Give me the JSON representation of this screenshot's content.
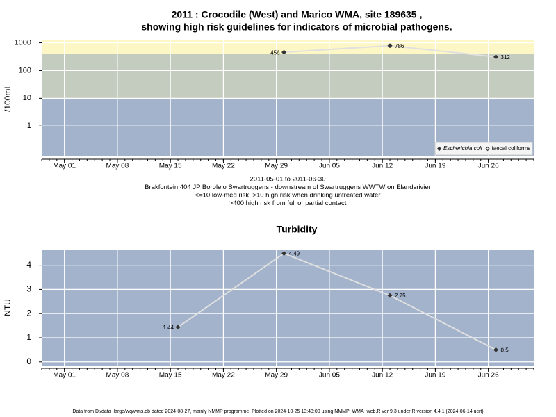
{
  "chart_data": [
    {
      "type": "line",
      "title": [
        "2011 : Crocodile (West) and Marico WMA, site 189635 ,",
        "showing high risk guidelines for indicators of microbial pathogens."
      ],
      "ylabel": "/100mL",
      "log_y": true,
      "x": [
        "2011-05-30",
        "2011-06-13",
        "2011-06-27"
      ],
      "series": [
        {
          "name": "Escherichia coli",
          "color": "#333333",
          "values": [
            456,
            786,
            312
          ]
        },
        {
          "name": "faecal coliforms",
          "color": "#333333",
          "values": [
            null,
            null,
            null
          ]
        }
      ],
      "line_color": "#e0e0e0",
      "bands": [
        {
          "max": 10,
          "color": "#a3b3cc"
        },
        {
          "min": 10,
          "max": 400,
          "color": "#c4cbbf"
        },
        {
          "min": 400,
          "color": "#fdf7c6"
        }
      ],
      "xlim": [
        "2011-04-28",
        "2011-07-02"
      ],
      "xticks": [
        {
          "value": "2011-05-01",
          "label": "May 01"
        },
        {
          "value": "2011-05-08",
          "label": "May 08"
        },
        {
          "value": "2011-05-15",
          "label": "May 15"
        },
        {
          "value": "2011-05-22",
          "label": "May 22"
        },
        {
          "value": "2011-05-29",
          "label": "May 29"
        },
        {
          "value": "2011-06-05",
          "label": "Jun 05"
        },
        {
          "value": "2011-06-12",
          "label": "Jun 12"
        },
        {
          "value": "2011-06-19",
          "label": "Jun 19"
        },
        {
          "value": "2011-06-26",
          "label": "Jun 26"
        }
      ],
      "ylim": [
        0.08,
        1300
      ],
      "yticks": [
        1,
        10,
        100,
        1000
      ],
      "grid": true,
      "legend": "bottom-right",
      "notes": [
        "2011-05-01 to 2011-06-30",
        "Brakfontein 404 JP Borolelo Swartruggens - downstream of Swartruggens WWTW on Elandsrivier",
        "<=10 low-med risk; >10 high risk when drinking untreated water",
        ">400 high risk from full or partial contact"
      ]
    },
    {
      "type": "line",
      "title": [
        "Turbidity"
      ],
      "ylabel": "NTU",
      "log_y": false,
      "x": [
        "2011-05-16",
        "2011-05-30",
        "2011-06-13",
        "2011-06-27"
      ],
      "series": [
        {
          "color": "#333333",
          "values": [
            1.44,
            4.49,
            2.75,
            0.5
          ]
        }
      ],
      "line_color": "#e0e0e0",
      "background": "#a3b3cc",
      "xlim": [
        "2011-04-28",
        "2011-07-02"
      ],
      "xticks": [
        {
          "value": "2011-05-01",
          "label": "May 01"
        },
        {
          "value": "2011-05-08",
          "label": "May 08"
        },
        {
          "value": "2011-05-15",
          "label": "May 15"
        },
        {
          "value": "2011-05-22",
          "label": "May 22"
        },
        {
          "value": "2011-05-29",
          "label": "May 29"
        },
        {
          "value": "2011-06-05",
          "label": "Jun 05"
        },
        {
          "value": "2011-06-12",
          "label": "Jun 12"
        },
        {
          "value": "2011-06-19",
          "label": "Jun 19"
        },
        {
          "value": "2011-06-26",
          "label": "Jun 26"
        }
      ],
      "ylim": [
        -0.15,
        4.65
      ],
      "yticks": [
        0,
        1,
        2,
        3,
        4
      ],
      "grid": true
    }
  ],
  "footer": "Data from D:/data_large/wq/wms.db dated 2024-08-27, mainly NMMP programme. Plotted on 2024-10-25 13:43:00 using NMMP_WMA_web.R ver 9.3 under R version 4.4.1 (2024-06-14 ucrt)"
}
